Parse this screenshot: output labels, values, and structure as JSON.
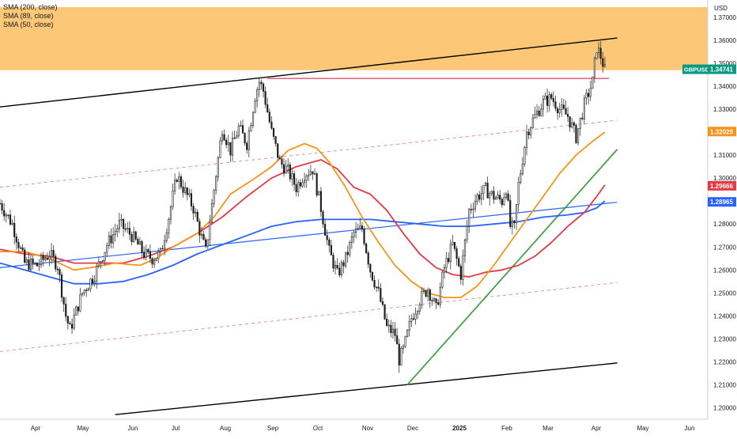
{
  "legend": {
    "items": [
      "SMA (200, close)",
      "SMA (89, close)",
      "SMA (50, close)"
    ]
  },
  "currency_label": "USD",
  "colors": {
    "resistance_zone": "#fcc878",
    "channel": "#000000",
    "channel_mid": "#e57373",
    "horizontal": "#e05064",
    "sma200": "#2962ff",
    "sma89": "#e53946",
    "sma50": "#f7931a",
    "uptrend": "#43a047",
    "trendline_blue": "#2962ff",
    "candle_up": "#089981",
    "candle_down": "#f23645"
  },
  "chart_data": {
    "type": "candlestick",
    "symbol": "GBPUSD",
    "y_ticks": [
      "1.37000",
      "1.36000",
      "1.35000",
      "1.34000",
      "1.33000",
      "1.32000",
      "1.31000",
      "1.30000",
      "1.29000",
      "1.28000",
      "1.27000",
      "1.26000",
      "1.25000",
      "1.24000",
      "1.23000",
      "1.22000",
      "1.21000",
      "1.20000"
    ],
    "ylim": [
      1.195,
      1.3755
    ],
    "x_labels": [
      "Apr",
      "May",
      "Jun",
      "Jul",
      "Aug",
      "Sep",
      "Oct",
      "Nov",
      "Dec",
      "2025",
      "Feb",
      "Mar",
      "Apr",
      "May",
      "Jun"
    ],
    "price_tags": [
      {
        "label": "GBPUSD",
        "value": "1.34741",
        "price": 1.34741,
        "color": "#089981"
      },
      {
        "label": "",
        "value": "1.32029",
        "price": 1.32029,
        "color": "#f7931a"
      },
      {
        "label": "",
        "value": "1.29666",
        "price": 1.29666,
        "color": "#e53946"
      },
      {
        "label": "",
        "value": "1.28965",
        "price": 1.28965,
        "color": "#2962ff"
      }
    ],
    "resistance_zone": {
      "low": 1.347,
      "high": 1.3745
    },
    "close_path": [
      [
        0,
        1.289
      ],
      [
        3,
        1.28
      ],
      [
        6,
        1.263
      ],
      [
        9,
        1.262
      ],
      [
        12,
        1.267
      ],
      [
        14,
        1.262
      ],
      [
        16,
        1.24
      ],
      [
        17,
        1.234
      ],
      [
        20,
        1.25
      ],
      [
        23,
        1.258
      ],
      [
        26,
        1.271
      ],
      [
        29,
        1.28
      ],
      [
        32,
        1.275
      ],
      [
        35,
        1.267
      ],
      [
        37,
        1.265
      ],
      [
        39,
        1.267
      ],
      [
        41,
        1.283
      ],
      [
        43,
        1.301
      ],
      [
        45,
        1.294
      ],
      [
        47,
        1.287
      ],
      [
        49,
        1.274
      ],
      [
        50,
        1.268
      ],
      [
        52,
        1.295
      ],
      [
        54,
        1.322
      ],
      [
        56,
        1.312
      ],
      [
        58,
        1.322
      ],
      [
        60,
        1.315
      ],
      [
        62,
        1.336
      ],
      [
        63,
        1.342
      ],
      [
        64,
        1.338
      ],
      [
        66,
        1.32
      ],
      [
        68,
        1.307
      ],
      [
        70,
        1.303
      ],
      [
        72,
        1.296
      ],
      [
        74,
        1.302
      ],
      [
        76,
        1.304
      ],
      [
        78,
        1.287
      ],
      [
        80,
        1.268
      ],
      [
        82,
        1.258
      ],
      [
        84,
        1.265
      ],
      [
        86,
        1.276
      ],
      [
        88,
        1.278
      ],
      [
        90,
        1.26
      ],
      [
        92,
        1.25
      ],
      [
        94,
        1.235
      ],
      [
        96,
        1.232
      ],
      [
        97,
        1.221
      ],
      [
        98,
        1.225
      ],
      [
        100,
        1.239
      ],
      [
        102,
        1.247
      ],
      [
        104,
        1.252
      ],
      [
        106,
        1.243
      ],
      [
        108,
        1.261
      ],
      [
        110,
        1.271
      ],
      [
        112,
        1.258
      ],
      [
        114,
        1.286
      ],
      [
        116,
        1.292
      ],
      [
        118,
        1.295
      ],
      [
        120,
        1.292
      ],
      [
        122,
        1.29
      ],
      [
        123,
        1.296
      ],
      [
        124,
        1.279
      ],
      [
        125,
        1.278
      ],
      [
        126,
        1.297
      ],
      [
        128,
        1.32
      ],
      [
        130,
        1.327
      ],
      [
        132,
        1.333
      ],
      [
        134,
        1.335
      ],
      [
        136,
        1.33
      ],
      [
        138,
        1.327
      ],
      [
        140,
        1.318
      ],
      [
        142,
        1.332
      ],
      [
        144,
        1.342
      ],
      [
        145,
        1.357
      ],
      [
        146,
        1.353
      ],
      [
        147,
        1.347
      ]
    ],
    "channel_lines": [
      {
        "name": "upper",
        "from": [
          0,
          1.331
        ],
        "to": [
          150,
          1.361
        ]
      },
      {
        "name": "lower",
        "from": [
          28,
          1.197
        ],
        "to": [
          150,
          1.2195
        ]
      },
      {
        "name": "mid-upper",
        "from": [
          0,
          1.296
        ],
        "to": [
          150,
          1.3252
        ]
      },
      {
        "name": "mid-lower",
        "from": [
          0,
          1.2245
        ],
        "to": [
          150,
          1.2545
        ]
      }
    ],
    "horizontal_level": {
      "price": 1.3434,
      "from_x": 65,
      "to_x": 148
    },
    "uptrend_line": {
      "from": [
        99,
        1.21
      ],
      "to": [
        150,
        1.3125
      ]
    },
    "blue_trendline": {
      "from": [
        0,
        1.261
      ],
      "to": [
        150,
        1.2895
      ]
    },
    "sma50": [
      [
        0,
        1.268
      ],
      [
        6,
        1.268
      ],
      [
        12,
        1.265
      ],
      [
        18,
        1.26
      ],
      [
        22,
        1.261
      ],
      [
        28,
        1.263
      ],
      [
        34,
        1.262
      ],
      [
        38,
        1.265
      ],
      [
        42,
        1.27
      ],
      [
        48,
        1.276
      ],
      [
        52,
        1.283
      ],
      [
        56,
        1.293
      ],
      [
        62,
        1.3
      ],
      [
        66,
        1.305
      ],
      [
        70,
        1.312
      ],
      [
        74,
        1.315
      ],
      [
        77,
        1.313
      ],
      [
        80,
        1.307
      ],
      [
        84,
        1.296
      ],
      [
        88,
        1.283
      ],
      [
        92,
        1.272
      ],
      [
        96,
        1.262
      ],
      [
        100,
        1.255
      ],
      [
        104,
        1.25
      ],
      [
        108,
        1.248
      ],
      [
        112,
        1.248
      ],
      [
        116,
        1.253
      ],
      [
        120,
        1.262
      ],
      [
        124,
        1.272
      ],
      [
        128,
        1.282
      ],
      [
        132,
        1.292
      ],
      [
        136,
        1.302
      ],
      [
        140,
        1.31
      ],
      [
        144,
        1.316
      ],
      [
        147,
        1.32
      ]
    ],
    "sma89": [
      [
        0,
        1.269
      ],
      [
        6,
        1.267
      ],
      [
        12,
        1.266
      ],
      [
        18,
        1.263
      ],
      [
        24,
        1.263
      ],
      [
        30,
        1.263
      ],
      [
        36,
        1.266
      ],
      [
        42,
        1.27
      ],
      [
        48,
        1.276
      ],
      [
        54,
        1.283
      ],
      [
        60,
        1.292
      ],
      [
        66,
        1.3
      ],
      [
        72,
        1.305
      ],
      [
        78,
        1.308
      ],
      [
        82,
        1.304
      ],
      [
        86,
        1.296
      ],
      [
        90,
        1.293
      ],
      [
        94,
        1.286
      ],
      [
        98,
        1.276
      ],
      [
        102,
        1.267
      ],
      [
        106,
        1.261
      ],
      [
        110,
        1.258
      ],
      [
        114,
        1.257
      ],
      [
        118,
        1.259
      ],
      [
        122,
        1.26
      ],
      [
        126,
        1.262
      ],
      [
        130,
        1.266
      ],
      [
        134,
        1.272
      ],
      [
        138,
        1.279
      ],
      [
        142,
        1.285
      ],
      [
        145,
        1.292
      ],
      [
        147,
        1.297
      ]
    ],
    "sma200": [
      [
        0,
        1.263
      ],
      [
        6,
        1.26
      ],
      [
        12,
        1.257
      ],
      [
        18,
        1.254
      ],
      [
        24,
        1.254
      ],
      [
        30,
        1.255
      ],
      [
        36,
        1.258
      ],
      [
        42,
        1.262
      ],
      [
        48,
        1.267
      ],
      [
        54,
        1.271
      ],
      [
        60,
        1.275
      ],
      [
        66,
        1.279
      ],
      [
        72,
        1.281
      ],
      [
        78,
        1.282
      ],
      [
        84,
        1.282
      ],
      [
        90,
        1.282
      ],
      [
        96,
        1.281
      ],
      [
        102,
        1.28
      ],
      [
        108,
        1.279
      ],
      [
        114,
        1.279
      ],
      [
        120,
        1.28
      ],
      [
        126,
        1.281
      ],
      [
        132,
        1.283
      ],
      [
        138,
        1.284
      ],
      [
        142,
        1.285
      ],
      [
        145,
        1.287
      ],
      [
        147,
        1.29
      ]
    ]
  }
}
